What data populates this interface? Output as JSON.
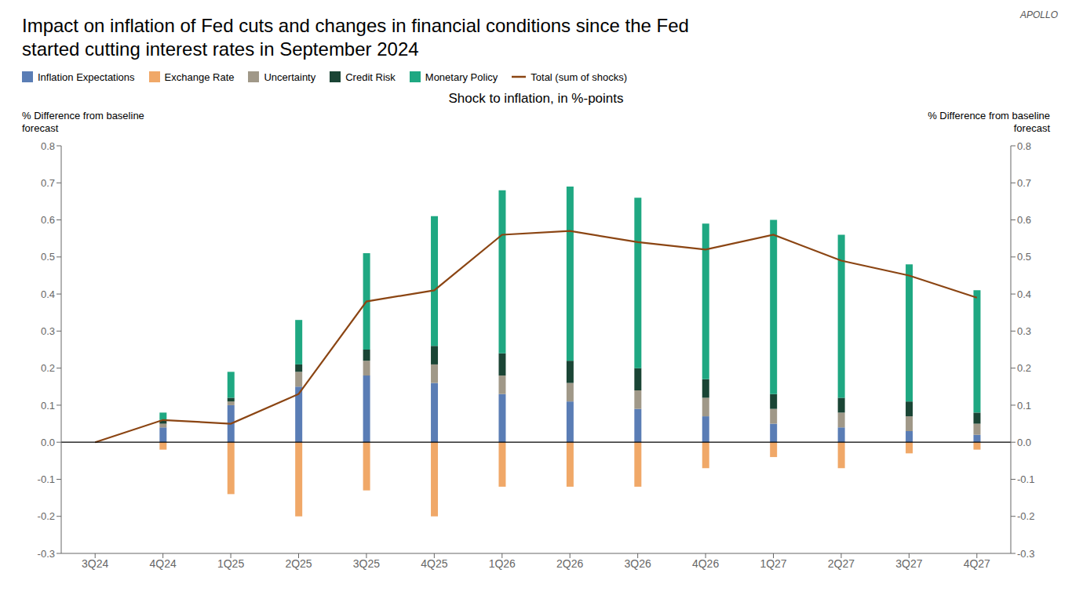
{
  "chart_data": {
    "type": "bar",
    "stacked": true,
    "title": "Impact on inflation of  Fed cuts and changes in financial conditions since the Fed\nstarted cutting interest rates in September 2024",
    "subtitle": "Shock to inflation, in %-points",
    "ylabel": "% Difference from baseline\nforecast",
    "y2label": "% Difference from baseline\nforecast",
    "annotations": [
      "APOLLO"
    ],
    "categories": [
      "3Q24",
      "4Q24",
      "1Q25",
      "2Q25",
      "3Q25",
      "4Q25",
      "1Q26",
      "2Q26",
      "3Q26",
      "4Q26",
      "1Q27",
      "2Q27",
      "3Q27",
      "4Q27"
    ],
    "series": [
      {
        "name": "Inflation Expectations",
        "color": "#5a7db5",
        "values": [
          0.0,
          0.04,
          0.1,
          0.15,
          0.18,
          0.16,
          0.13,
          0.11,
          0.09,
          0.07,
          0.05,
          0.04,
          0.03,
          0.02
        ]
      },
      {
        "name": "Exchange Rate",
        "color": "#f0a868",
        "values": [
          0.0,
          -0.02,
          -0.14,
          -0.2,
          -0.13,
          -0.2,
          -0.12,
          -0.12,
          -0.12,
          -0.07,
          -0.04,
          -0.07,
          -0.03,
          -0.02
        ]
      },
      {
        "name": "Uncertainty",
        "color": "#a09888",
        "values": [
          0.0,
          0.01,
          0.01,
          0.04,
          0.04,
          0.05,
          0.05,
          0.05,
          0.05,
          0.05,
          0.04,
          0.04,
          0.04,
          0.03
        ]
      },
      {
        "name": "Credit Risk",
        "color": "#1a4535",
        "values": [
          0.0,
          0.01,
          0.01,
          0.02,
          0.03,
          0.05,
          0.06,
          0.06,
          0.06,
          0.05,
          0.04,
          0.04,
          0.04,
          0.03
        ]
      },
      {
        "name": "Monetary Policy",
        "color": "#1fa882",
        "values": [
          0.0,
          0.02,
          0.07,
          0.12,
          0.26,
          0.35,
          0.44,
          0.47,
          0.46,
          0.42,
          0.47,
          0.44,
          0.37,
          0.33
        ]
      },
      {
        "name": "Total (sum of shocks)",
        "type": "line",
        "color": "#8B4513",
        "values": [
          0.0,
          0.06,
          0.05,
          0.13,
          0.38,
          0.41,
          0.56,
          0.57,
          0.54,
          0.52,
          0.56,
          0.49,
          0.45,
          0.39
        ]
      }
    ],
    "ylim": [
      -0.3,
      0.8
    ],
    "yticks": [
      -0.3,
      -0.2,
      -0.1,
      {
        "value": 0,
        "label": "0.0"
      },
      0.1,
      0.2,
      0.3,
      0.4,
      0.5,
      0.6,
      0.7,
      0.8
    ],
    "y2lim": [
      -0.3,
      0.8
    ],
    "y2ticks": [
      -0.3,
      -0.2,
      -0.1,
      {
        "value": 0,
        "label": "0.0"
      },
      0.1,
      0.2,
      0.3,
      0.4,
      0.5,
      0.6,
      0.7,
      0.8
    ],
    "grid": false,
    "legend": "top"
  }
}
